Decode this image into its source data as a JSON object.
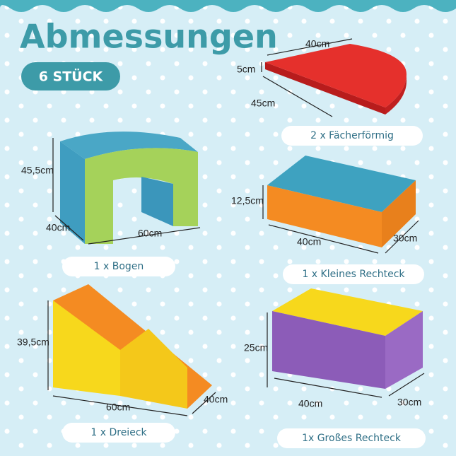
{
  "title": "Abmessungen",
  "badge": "6 STÜCK",
  "items": [
    {
      "label": "2 x Fächerförmig",
      "dimensions": [
        "40cm",
        "5cm",
        "45cm"
      ]
    },
    {
      "label": "1 x Bogen",
      "dimensions": [
        "45,5cm",
        "40cm",
        "60cm"
      ]
    },
    {
      "label": "1 x Kleines Rechteck",
      "dimensions": [
        "12,5cm",
        "40cm",
        "30cm"
      ]
    },
    {
      "label": "1 x Dreieck",
      "dimensions": [
        "39,5cm",
        "60cm",
        "40cm"
      ]
    },
    {
      "label": "1x Großes Rechteck",
      "dimensions": [
        "25cm",
        "40cm",
        "30cm"
      ]
    }
  ]
}
